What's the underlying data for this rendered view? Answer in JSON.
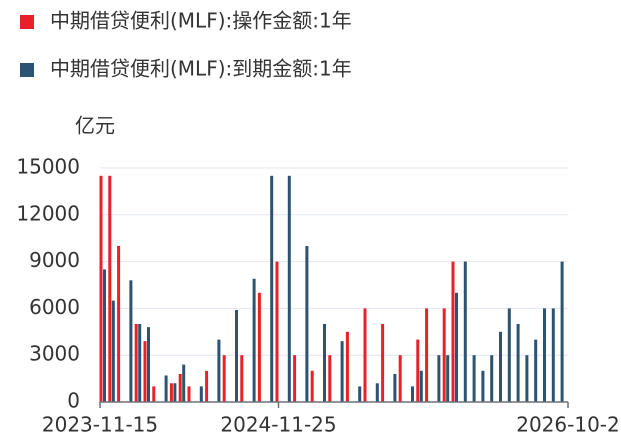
{
  "chart_data": {
    "type": "bar",
    "y_label": "亿元",
    "categories": [
      "2023-11-15",
      null,
      null,
      null,
      null,
      null,
      null,
      null,
      null,
      null,
      null,
      null,
      null,
      null,
      null,
      null,
      null,
      null,
      null,
      null,
      "2024-11-25",
      null,
      null,
      null,
      null,
      null,
      null,
      null,
      null,
      null,
      null,
      null,
      null,
      null,
      null,
      null,
      null,
      null,
      null,
      null,
      null,
      null,
      null,
      null,
      null,
      null,
      null,
      null,
      null,
      null,
      null,
      null,
      "2026-10-2"
    ],
    "series": [
      {
        "name": "中期借贷便利(MLF):操作金额:1年",
        "color": "#e8202a",
        "values": [
          14500,
          14500,
          10000,
          null,
          5000,
          3900,
          1000,
          null,
          1200,
          1800,
          1000,
          null,
          2000,
          null,
          3000,
          null,
          3000,
          null,
          7000,
          null,
          9000,
          null,
          3000,
          null,
          2000,
          null,
          3000,
          null,
          4500,
          null,
          6000,
          null,
          5000,
          null,
          3000,
          null,
          4000,
          6000,
          null,
          6000,
          9000,
          null,
          null,
          null,
          null,
          null,
          null,
          null,
          null,
          null,
          null,
          null,
          null
        ]
      },
      {
        "name": "中期借贷便利(MLF):到期金额:1年",
        "color": "#2b5372",
        "values": [
          8500,
          6500,
          null,
          7800,
          5000,
          4800,
          null,
          1700,
          1200,
          2400,
          null,
          1000,
          null,
          4000,
          null,
          5900,
          null,
          7900,
          null,
          14500,
          null,
          14500,
          null,
          10000,
          null,
          5000,
          null,
          3900,
          null,
          1000,
          null,
          1200,
          null,
          1800,
          null,
          1000,
          2000,
          null,
          3000,
          3000,
          7000,
          9000,
          3000,
          2000,
          3000,
          4500,
          6000,
          5000,
          3000,
          4000,
          6000,
          6000,
          9000
        ]
      }
    ],
    "ylim": [
      0,
      15000
    ],
    "yticks": [
      0,
      3000,
      6000,
      9000,
      12000,
      15000
    ],
    "grid": true
  }
}
